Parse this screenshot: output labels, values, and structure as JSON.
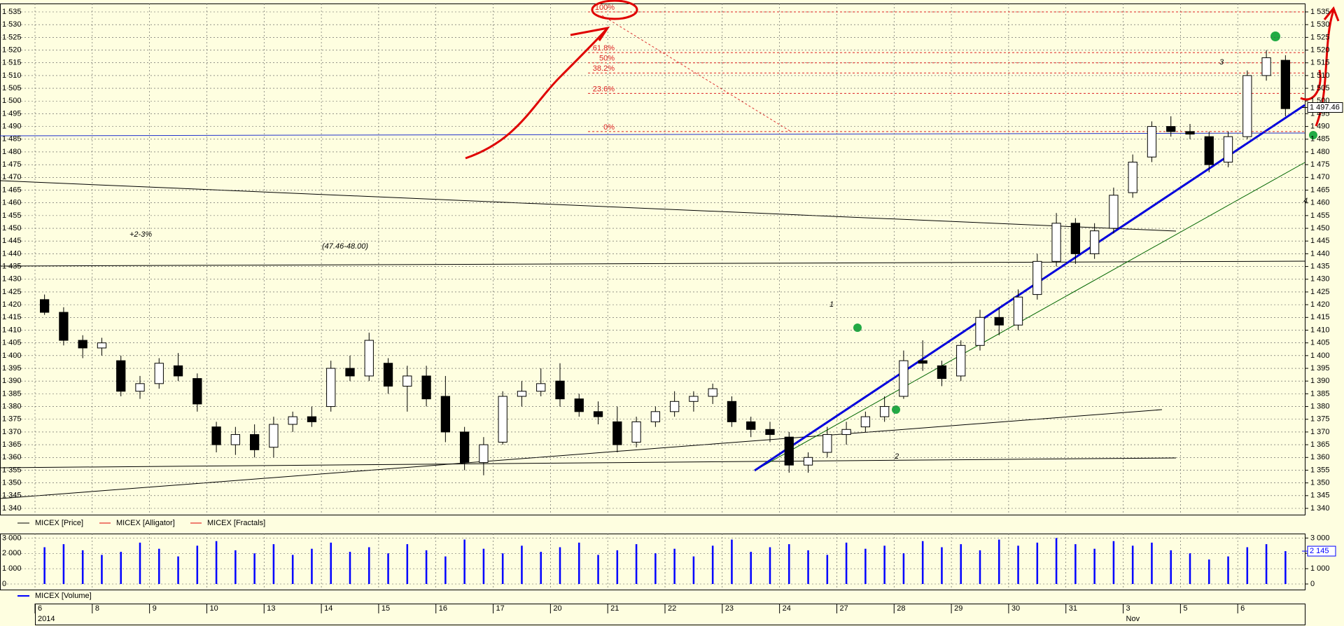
{
  "chart_data": {
    "type": "candlestick",
    "instrument": "MICEX",
    "legend": [
      "MICEX [Price]",
      "MICEX [Alligator]",
      "MICEX [Fractals]"
    ],
    "volume_legend": "MICEX [Volume]",
    "categories": [
      "6",
      null,
      null,
      "8",
      null,
      null,
      "9",
      null,
      null,
      "10",
      null,
      null,
      "13",
      null,
      null,
      "14",
      null,
      null,
      "15",
      null,
      null,
      "16",
      null,
      null,
      "17",
      null,
      null,
      "20",
      null,
      null,
      "21",
      null,
      null,
      "22",
      null,
      null,
      "23",
      null,
      null,
      "24",
      null,
      null,
      "27",
      null,
      null,
      "28",
      null,
      null,
      "29",
      null,
      null,
      "30",
      null,
      null,
      "31",
      null,
      null,
      "3",
      null,
      null,
      "5",
      null,
      null,
      "6",
      null,
      null
    ],
    "month_labels": [
      "2014",
      null,
      null,
      null,
      null,
      null,
      null,
      null,
      null,
      null,
      null,
      null,
      null,
      null,
      null,
      null,
      null,
      null,
      null,
      null,
      null,
      null,
      null,
      null,
      null,
      null,
      null,
      null,
      null,
      null,
      null,
      null,
      null,
      null,
      null,
      null,
      null,
      null,
      null,
      null,
      null,
      null,
      null,
      null,
      null,
      null,
      null,
      null,
      null,
      null,
      null,
      null,
      null,
      null,
      null,
      null,
      null,
      "Nov",
      null,
      null,
      null,
      null,
      null,
      null,
      null,
      null
    ],
    "open": [
      1422,
      1417,
      1406,
      1403,
      1398,
      1386,
      1389,
      1396,
      1391,
      1372,
      1365,
      1369,
      1364,
      1373,
      1376,
      1380,
      1395,
      1392,
      1397,
      1388,
      1392,
      1384,
      1370,
      1358,
      1366,
      1384,
      1386,
      1390,
      1383,
      1378,
      1374,
      1366,
      1374,
      1378,
      1382,
      1384,
      1382,
      1374,
      1371,
      1368,
      1357,
      1362,
      1369,
      1372,
      1376,
      1384,
      1398,
      1396,
      1392,
      1404,
      1415,
      1412,
      1424,
      1437,
      1452,
      1440,
      1450,
      1464,
      1478,
      1490,
      1488,
      1486,
      1476,
      1486,
      1510,
      1516
    ],
    "high": [
      1424,
      1419,
      1408,
      1407,
      1400,
      1392,
      1399,
      1401,
      1393,
      1374,
      1372,
      1373,
      1376,
      1378,
      1380,
      1398,
      1400,
      1409,
      1399,
      1396,
      1396,
      1392,
      1372,
      1368,
      1386,
      1390,
      1395,
      1397,
      1385,
      1382,
      1380,
      1376,
      1380,
      1386,
      1386,
      1389,
      1384,
      1376,
      1374,
      1370,
      1362,
      1372,
      1374,
      1378,
      1384,
      1402,
      1406,
      1398,
      1406,
      1418,
      1419,
      1426,
      1440,
      1456,
      1454,
      1452,
      1466,
      1479,
      1492,
      1494,
      1491,
      1488,
      1488,
      1512,
      1520,
      1518
    ],
    "low": [
      1416,
      1404,
      1399,
      1400,
      1384,
      1383,
      1387,
      1390,
      1378,
      1362,
      1361,
      1360,
      1360,
      1370,
      1372,
      1378,
      1390,
      1390,
      1385,
      1378,
      1380,
      1366,
      1355,
      1353,
      1365,
      1380,
      1384,
      1380,
      1376,
      1373,
      1362,
      1364,
      1372,
      1376,
      1378,
      1381,
      1372,
      1368,
      1366,
      1354,
      1354,
      1360,
      1365,
      1370,
      1374,
      1383,
      1394,
      1388,
      1390,
      1402,
      1408,
      1410,
      1422,
      1435,
      1436,
      1438,
      1448,
      1462,
      1476,
      1486,
      1485,
      1472,
      1474,
      1485,
      1508,
      1494
    ],
    "close": [
      1417,
      1406,
      1403,
      1405,
      1386,
      1389,
      1397,
      1392,
      1381,
      1365,
      1369,
      1363,
      1373,
      1376,
      1374,
      1395,
      1392,
      1406,
      1388,
      1392,
      1383,
      1370,
      1358,
      1365,
      1384,
      1386,
      1389,
      1383,
      1378,
      1376,
      1365,
      1374,
      1378,
      1382,
      1384,
      1387,
      1374,
      1371,
      1369,
      1357,
      1360,
      1369,
      1371,
      1376,
      1380,
      1398,
      1397,
      1391,
      1404,
      1415,
      1412,
      1423,
      1437,
      1452,
      1440,
      1449,
      1463,
      1476,
      1490,
      1488,
      1487,
      1475,
      1486,
      1510,
      1517,
      1497
    ],
    "volume": [
      2400,
      2600,
      2200,
      1900,
      2100,
      2700,
      2300,
      1800,
      2500,
      2800,
      2200,
      2000,
      2600,
      1900,
      2300,
      2700,
      2100,
      2400,
      2000,
      2600,
      2200,
      1800,
      2900,
      2300,
      2000,
      2500,
      2100,
      2400,
      2700,
      1900,
      2200,
      2600,
      2000,
      2300,
      1800,
      2500,
      2900,
      2100,
      2400,
      2600,
      2200,
      1900,
      2700,
      2300,
      2500,
      2000,
      2800,
      2400,
      2600,
      2200,
      2900,
      2500,
      2700,
      3000,
      2600,
      2300,
      2800,
      2500,
      2700,
      2200,
      2000,
      1600,
      1800,
      2400,
      2600,
      2145
    ],
    "last_price": {
      "value": 1497.46,
      "label": "1 497.46"
    },
    "last_volume": {
      "value": 2145,
      "label": "2 145"
    },
    "ylim": [
      1340,
      1535
    ],
    "yticks": [
      {
        "value": 1340,
        "label": "1 340"
      },
      {
        "value": 1345,
        "label": "1 345"
      },
      {
        "value": 1350,
        "label": "1 350"
      },
      {
        "value": 1355,
        "label": "1 355"
      },
      {
        "value": 1360,
        "label": "1 360"
      },
      {
        "value": 1365,
        "label": "1 365"
      },
      {
        "value": 1370,
        "label": "1 370"
      },
      {
        "value": 1375,
        "label": "1 375"
      },
      {
        "value": 1380,
        "label": "1 380"
      },
      {
        "value": 1385,
        "label": "1 385"
      },
      {
        "value": 1390,
        "label": "1 390"
      },
      {
        "value": 1395,
        "label": "1 395"
      },
      {
        "value": 1400,
        "label": "1 400"
      },
      {
        "value": 1405,
        "label": "1 405"
      },
      {
        "value": 1410,
        "label": "1 410"
      },
      {
        "value": 1415,
        "label": "1 415"
      },
      {
        "value": 1420,
        "label": "1 420"
      },
      {
        "value": 1425,
        "label": "1 425"
      },
      {
        "value": 1430,
        "label": "1 430"
      },
      {
        "value": 1435,
        "label": "1 435"
      },
      {
        "value": 1440,
        "label": "1 440"
      },
      {
        "value": 1445,
        "label": "1 445"
      },
      {
        "value": 1450,
        "label": "1 450"
      },
      {
        "value": 1455,
        "label": "1 455"
      },
      {
        "value": 1460,
        "label": "1 460"
      },
      {
        "value": 1465,
        "label": "1 465"
      },
      {
        "value": 1470,
        "label": "1 470"
      },
      {
        "value": 1475,
        "label": "1 475"
      },
      {
        "value": 1480,
        "label": "1 480"
      },
      {
        "value": 1485,
        "label": "1 485"
      },
      {
        "value": 1490,
        "label": "1 490"
      },
      {
        "value": 1495,
        "label": "1 495"
      },
      {
        "value": 1500,
        "label": "1 500"
      },
      {
        "value": 1505,
        "label": "1 505"
      },
      {
        "value": 1510,
        "label": "1 510"
      },
      {
        "value": 1515,
        "label": "1 515"
      },
      {
        "value": 1520,
        "label": "1 520"
      },
      {
        "value": 1525,
        "label": "1 525"
      },
      {
        "value": 1530,
        "label": "1 530"
      },
      {
        "value": 1535,
        "label": "1 535"
      }
    ],
    "vlim": [
      0,
      3200
    ],
    "vticks": [
      0,
      {
        "value": 1000,
        "label": "1 000"
      },
      {
        "value": 2000,
        "label": "2 000"
      },
      {
        "value": 3000,
        "label": "3 000"
      }
    ],
    "fib_levels": [
      {
        "value": 1535,
        "label": "100%"
      },
      {
        "value": 1519,
        "label": "61.8%"
      },
      {
        "value": 1515,
        "label": "50%"
      },
      {
        "value": 1511,
        "label": "38.2%"
      },
      {
        "value": 1503,
        "label": "23.6%"
      },
      {
        "value": 1488,
        "label": "0%"
      }
    ],
    "annotations": [
      "+2-3%",
      "(47.46-48.00)",
      "1",
      "2",
      "3",
      "4"
    ],
    "grid": true
  }
}
